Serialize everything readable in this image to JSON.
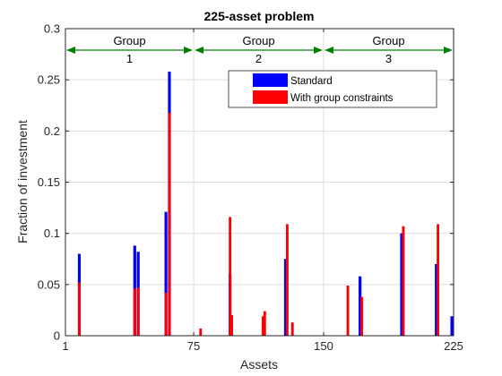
{
  "chart_data": {
    "type": "bar",
    "title": "225-asset problem",
    "xlabel": "Assets",
    "ylabel": "Fraction of investment",
    "xlim": [
      1,
      225
    ],
    "ylim": [
      0,
      0.3
    ],
    "x_ticks": [
      1,
      75,
      150,
      225
    ],
    "y_ticks": [
      0,
      0.05,
      0.1,
      0.15,
      0.2,
      0.25,
      0.3
    ],
    "y_tick_labels": [
      "0",
      "0.05",
      "0.1",
      "0.15",
      "0.2",
      "0.25",
      "0.3"
    ],
    "grid": true,
    "legend_position": "upper-right",
    "groups": [
      {
        "label": "Group",
        "number": "1",
        "range": [
          1,
          75
        ]
      },
      {
        "label": "Group",
        "number": "2",
        "range": [
          75,
          150
        ]
      },
      {
        "label": "Group",
        "number": "3",
        "range": [
          150,
          225
        ]
      }
    ],
    "series": [
      {
        "name": "Standard",
        "color": "#0000ff",
        "x": [
          9,
          41,
          43,
          59,
          61,
          96,
          128,
          171,
          195,
          215,
          224
        ],
        "values": [
          0.08,
          0.088,
          0.082,
          0.121,
          0.258,
          0.06,
          0.075,
          0.058,
          0.1,
          0.07,
          0.019
        ]
      },
      {
        "name": "With group constraints",
        "color": "#ff0000",
        "x": [
          9,
          41,
          43,
          59,
          61,
          79,
          96,
          97,
          115,
          116,
          129,
          132,
          164,
          172,
          196,
          216
        ],
        "values": [
          0.052,
          0.046,
          0.047,
          0.042,
          0.218,
          0.007,
          0.116,
          0.02,
          0.019,
          0.024,
          0.109,
          0.013,
          0.049,
          0.038,
          0.107,
          0.109
        ]
      }
    ]
  }
}
